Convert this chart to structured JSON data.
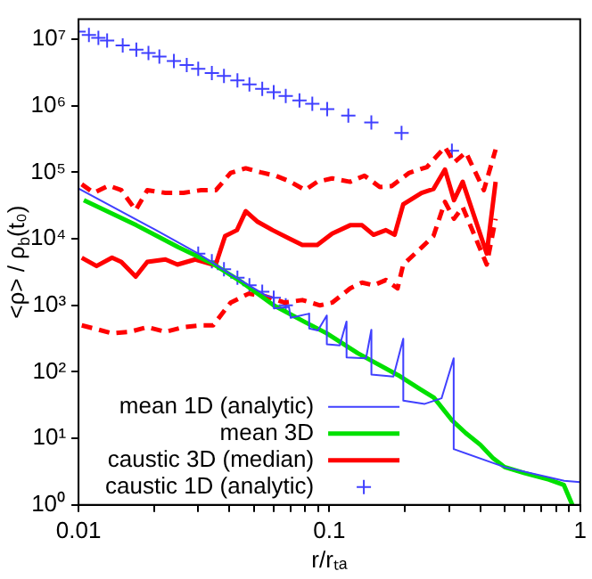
{
  "chart_data": {
    "type": "line",
    "xlabel": "r/rₜₐ",
    "ylabel": "<ρ> / ρ$_{b}$(t₀)",
    "log": "xy",
    "xlim": [
      0.01,
      1
    ],
    "ylim": [
      1,
      20000000
    ],
    "xticks": [
      0.01,
      {
        "value": 0.02,
        "label": null
      },
      {
        "value": 0.03,
        "label": null
      },
      {
        "value": 0.04,
        "label": null
      },
      {
        "value": 0.05,
        "label": null
      },
      {
        "value": 0.06,
        "label": null
      },
      {
        "value": 0.07,
        "label": null
      },
      {
        "value": 0.08,
        "label": null
      },
      {
        "value": 0.09,
        "label": null
      },
      0.1,
      {
        "value": 0.2,
        "label": null
      },
      {
        "value": 0.3,
        "label": null
      },
      {
        "value": 0.4,
        "label": null
      },
      {
        "value": 0.5,
        "label": null
      },
      {
        "value": 0.6,
        "label": null
      },
      {
        "value": 0.7,
        "label": null
      },
      {
        "value": 0.8,
        "label": null
      },
      {
        "value": 0.9,
        "label": null
      },
      1
    ],
    "yticks": [
      {
        "value": 1,
        "label": "10⁰"
      },
      {
        "value": 10,
        "label": "10¹"
      },
      {
        "value": 100,
        "label": "10²"
      },
      {
        "value": 1000,
        "label": "10³"
      },
      {
        "value": 10000,
        "label": "10⁴"
      },
      {
        "value": 100000,
        "label": "10⁵"
      },
      {
        "value": 1000000,
        "label": "10⁶"
      },
      {
        "value": 10000000,
        "label": "10⁷"
      }
    ],
    "grid": false,
    "legend": "bottom left",
    "series": [
      {
        "name": "mean 1D (analytic)",
        "color": "#4040ff",
        "x": [
          0.01,
          0.02,
          0.03,
          0.04,
          0.05,
          0.056,
          0.06,
          0.0601,
          0.069,
          0.0701,
          0.083,
          0.0831,
          0.09,
          0.0976,
          0.0977,
          0.11,
          0.117,
          0.1171,
          0.14,
          0.147,
          0.1471,
          0.18,
          0.197,
          0.1971,
          0.24,
          0.28,
          0.313,
          0.3131,
          0.5,
          0.863,
          1.0
        ],
        "values": [
          57000,
          14000,
          6000,
          3000,
          1800,
          1400,
          1300,
          900,
          950,
          650,
          750,
          450,
          420,
          700,
          260,
          250,
          570,
          165,
          160,
          430,
          91,
          85,
          315,
          37,
          33,
          40,
          160,
          6.9,
          3.7,
          2.3,
          2.2
        ]
      },
      {
        "name": "mean 3D",
        "color": "#00e000",
        "x": [
          0.0105,
          0.017,
          0.025,
          0.034,
          0.045,
          0.06,
          0.08,
          0.0975,
          0.13,
          0.188,
          0.23,
          0.261,
          0.307,
          0.35,
          0.4,
          0.45,
          0.5,
          0.6,
          0.75,
          0.86,
          0.93
        ],
        "values": [
          38000,
          16000,
          7500,
          4300,
          2200,
          1000,
          560,
          380,
          190,
          89,
          55,
          41,
          19,
          12,
          8,
          5,
          3.7,
          3.0,
          2.4,
          2.0,
          1
        ]
      },
      {
        "name": "caustic 3D (median)",
        "color": "#ff0000",
        "x": [
          0.0103,
          0.0118,
          0.0136,
          0.0148,
          0.0169,
          0.0188,
          0.0222,
          0.0248,
          0.0292,
          0.0344,
          0.0353,
          0.0384,
          0.0428,
          0.0464,
          0.0518,
          0.0594,
          0.07,
          0.078,
          0.0895,
          0.1026,
          0.121,
          0.135,
          0.15,
          0.168,
          0.182,
          0.197,
          0.233,
          0.26,
          0.289,
          0.314,
          0.34,
          0.424,
          0.46
        ],
        "values": [
          5200,
          3900,
          5200,
          4500,
          2700,
          4500,
          4900,
          4100,
          4900,
          4100,
          4200,
          11000,
          13500,
          26000,
          18000,
          13500,
          9900,
          8100,
          8100,
          12000,
          16000,
          16000,
          11500,
          13500,
          11500,
          33000,
          49000,
          56000,
          110000,
          38000,
          72000,
          6000,
          72000
        ]
      },
      {
        "line_style": "dashed",
        "color": "#ff0000",
        "x": [
          0.0103,
          0.0115,
          0.0132,
          0.0148,
          0.0169,
          0.0188,
          0.0222,
          0.0262,
          0.0308,
          0.0353,
          0.0404,
          0.0464,
          0.0532,
          0.061,
          0.07,
          0.08,
          0.0895,
          0.1026,
          0.121,
          0.138,
          0.159,
          0.177,
          0.208,
          0.245,
          0.289,
          0.314,
          0.35,
          0.413,
          0.46
        ],
        "values": [
          66000,
          49000,
          63000,
          54000,
          27000,
          54000,
          49000,
          49000,
          54000,
          54000,
          98000,
          115000,
          100000,
          89000,
          72000,
          54000,
          72000,
          81000,
          72000,
          89000,
          60000,
          62000,
          98000,
          120000,
          240000,
          140000,
          200000,
          54000,
          220000
        ]
      },
      {
        "line_style": "dashed",
        "color": "#ff0000",
        "x": [
          0.0103,
          0.0115,
          0.0136,
          0.016,
          0.0188,
          0.0222,
          0.0262,
          0.0308,
          0.0344,
          0.0404,
          0.0477,
          0.0562,
          0.0662,
          0.078,
          0.0918,
          0.1026,
          0.121,
          0.135,
          0.15,
          0.168,
          0.187,
          0.197,
          0.233,
          0.26,
          0.289,
          0.314,
          0.34,
          0.424,
          0.46
        ],
        "values": [
          500,
          450,
          380,
          400,
          470,
          400,
          470,
          500,
          500,
          1100,
          1500,
          1350,
          1100,
          1200,
          1000,
          1100,
          1800,
          2200,
          2000,
          2400,
          1800,
          4100,
          7400,
          11000,
          36000,
          20000,
          30000,
          4100,
          20000
        ]
      },
      {
        "name": "caustic 1D (analytic)",
        "type": "scatter",
        "marker": "cross",
        "color": "#4040ff",
        "x": [
          0.01,
          0.011,
          0.012,
          0.013,
          0.015,
          0.017,
          0.019,
          0.021,
          0.024,
          0.027,
          0.03,
          0.034,
          0.038,
          0.043,
          0.048,
          0.054,
          0.06,
          0.067,
          0.076,
          0.0855,
          0.098,
          0.119,
          0.147,
          0.194,
          0.308,
          0.03,
          0.034,
          0.038,
          0.043,
          0.048,
          0.054,
          0.06,
          0.067
        ],
        "values": [
          13000000,
          11600000,
          10500000,
          9600000,
          8100000,
          7000000,
          6200000,
          5500000,
          4700000,
          4100000,
          3600000,
          3100000,
          2800000,
          2400000,
          2100000,
          1800000,
          1600000,
          1400000,
          1200000,
          1070000,
          890000,
          710000,
          560000,
          390000,
          210000,
          6000,
          4600,
          3500,
          2600,
          2000,
          1600,
          1300,
          1000
        ]
      }
    ]
  }
}
